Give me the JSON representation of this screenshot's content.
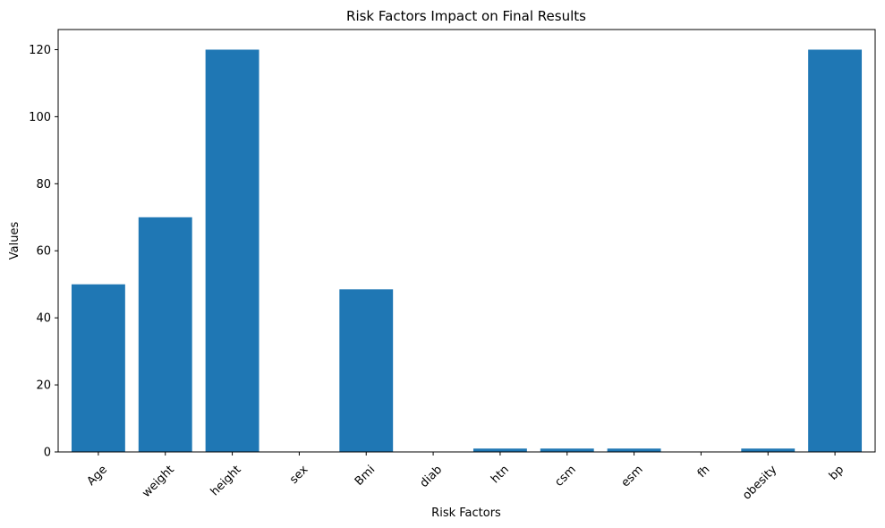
{
  "chart_data": {
    "type": "bar",
    "title": "Risk Factors Impact on Final Results",
    "xlabel": "Risk Factors",
    "ylabel": "Values",
    "categories": [
      "Age",
      "weight",
      "height",
      "sex",
      "Bmi",
      "diab",
      "htn",
      "csm",
      "esm",
      "fh",
      "obesity",
      "bp"
    ],
    "values": [
      50,
      70,
      120,
      0,
      48.5,
      0,
      1,
      1,
      1,
      0,
      1,
      120
    ],
    "ylim": [
      0,
      126
    ],
    "yticks": [
      0,
      20,
      40,
      60,
      80,
      100,
      120
    ],
    "bar_color": "#1f77b4",
    "grid": false,
    "legend": false
  }
}
